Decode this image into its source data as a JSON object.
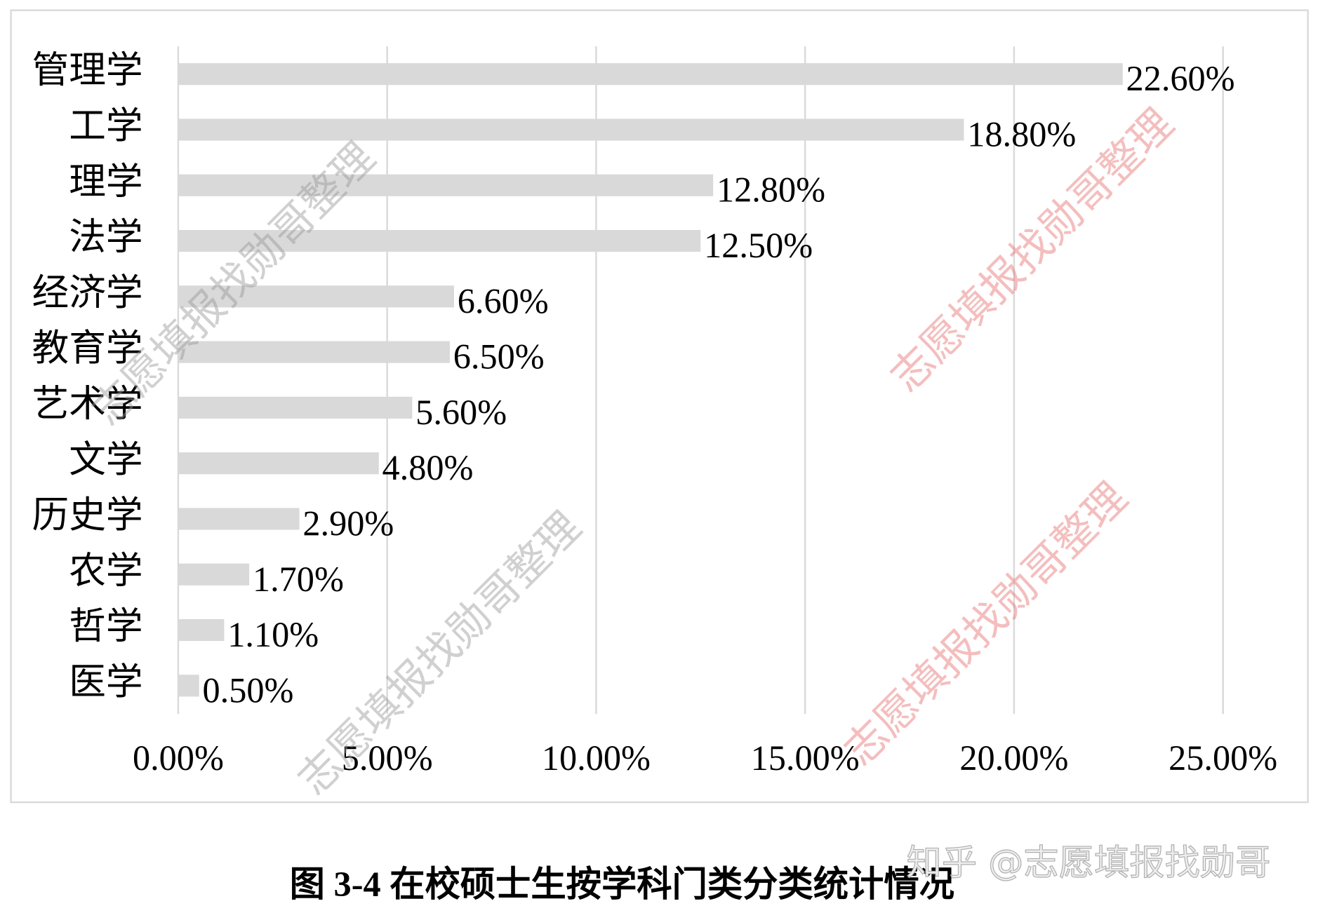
{
  "chart_data": {
    "type": "barh",
    "title": "图 3-4  在校硕士生按学科门类分类统计情况",
    "categories": [
      "管理学",
      "工学",
      "理学",
      "法学",
      "经济学",
      "教育学",
      "艺术学",
      "文学",
      "历史学",
      "农学",
      "哲学",
      "医学"
    ],
    "values": [
      22.6,
      18.8,
      12.8,
      12.5,
      6.6,
      6.5,
      5.6,
      4.8,
      2.9,
      1.7,
      1.1,
      0.5
    ],
    "value_labels": [
      "22.60%",
      "18.80%",
      "12.80%",
      "12.50%",
      "6.60%",
      "6.50%",
      "5.60%",
      "4.80%",
      "2.90%",
      "1.70%",
      "1.10%",
      "0.50%"
    ],
    "color": "#d9d9d9",
    "xlim": [
      0,
      25
    ],
    "xticks": [
      {
        "value": 0,
        "label": "0.00%"
      },
      {
        "value": 5,
        "label": "5.00%"
      },
      {
        "value": 10,
        "label": "10.00%"
      },
      {
        "value": 15,
        "label": "15.00%"
      },
      {
        "value": 20,
        "label": "20.00%"
      },
      {
        "value": 25,
        "label": "25.00%"
      }
    ],
    "grid": true
  },
  "watermarks": [
    "志愿填报找勋哥整理",
    "志愿填报找勋哥整理",
    "志愿填报找勋哥整理",
    "志愿填报找勋哥整理"
  ],
  "site_watermark": "知乎 @志愿填报找勋哥"
}
